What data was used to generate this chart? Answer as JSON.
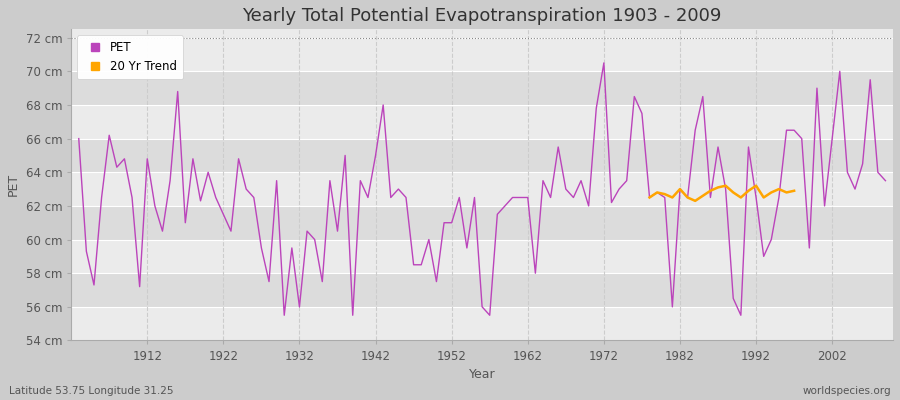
{
  "title": "Yearly Total Potential Evapotranspiration 1903 - 2009",
  "xlabel": "Year",
  "ylabel": "PET",
  "lat_lon_label": "Latitude 53.75 Longitude 31.25",
  "watermark": "worldspecies.org",
  "ylim": [
    54,
    72.5
  ],
  "yticks": [
    54,
    56,
    58,
    60,
    62,
    64,
    66,
    68,
    70,
    72
  ],
  "ytick_labels": [
    "54 cm",
    "56 cm",
    "58 cm",
    "60 cm",
    "62 cm",
    "64 cm",
    "66 cm",
    "68 cm",
    "70 cm",
    "72 cm"
  ],
  "xlim": [
    1902,
    2010
  ],
  "xticks": [
    1912,
    1922,
    1932,
    1942,
    1952,
    1962,
    1972,
    1982,
    1992,
    2002
  ],
  "pet_color": "#BB44BB",
  "trend_color": "#FFA500",
  "fig_bg_color": "#CCCCCC",
  "plot_bg_light": "#EBEBEB",
  "plot_bg_dark": "#DCDCDC",
  "grid_v_color": "#CCCCCC",
  "grid_h_color": "#FFFFFF",
  "top_dotted_color": "#888888",
  "years": [
    1903,
    1904,
    1905,
    1906,
    1907,
    1908,
    1909,
    1910,
    1911,
    1912,
    1913,
    1914,
    1915,
    1916,
    1917,
    1918,
    1919,
    1920,
    1921,
    1922,
    1923,
    1924,
    1925,
    1926,
    1927,
    1928,
    1929,
    1930,
    1931,
    1932,
    1933,
    1934,
    1935,
    1936,
    1937,
    1938,
    1939,
    1940,
    1941,
    1942,
    1943,
    1944,
    1945,
    1946,
    1947,
    1948,
    1949,
    1950,
    1951,
    1952,
    1953,
    1954,
    1955,
    1956,
    1957,
    1958,
    1959,
    1960,
    1961,
    1962,
    1963,
    1964,
    1965,
    1966,
    1967,
    1968,
    1969,
    1970,
    1971,
    1972,
    1973,
    1974,
    1975,
    1976,
    1977,
    1978,
    1979,
    1980,
    1981,
    1982,
    1983,
    1984,
    1985,
    1986,
    1987,
    1988,
    1989,
    1990,
    1991,
    1992,
    1993,
    1994,
    1995,
    1996,
    1997,
    1998,
    1999,
    2000,
    2001,
    2002,
    2003,
    2004,
    2005,
    2006,
    2007,
    2008,
    2009
  ],
  "pet": [
    66.0,
    59.3,
    57.3,
    62.5,
    66.2,
    64.3,
    64.8,
    62.5,
    57.2,
    64.8,
    62.0,
    60.5,
    63.5,
    68.8,
    61.0,
    64.8,
    62.3,
    64.0,
    62.5,
    61.5,
    60.5,
    64.8,
    63.0,
    62.5,
    59.5,
    57.5,
    63.5,
    55.5,
    59.5,
    56.0,
    60.5,
    60.0,
    57.5,
    63.5,
    60.5,
    65.0,
    55.5,
    63.5,
    62.5,
    65.0,
    68.0,
    62.5,
    63.0,
    62.5,
    58.5,
    58.5,
    60.0,
    57.5,
    61.0,
    61.0,
    62.5,
    59.5,
    62.5,
    56.0,
    55.5,
    61.5,
    62.0,
    62.5,
    62.5,
    62.5,
    58.0,
    63.5,
    62.5,
    65.5,
    63.0,
    62.5,
    63.5,
    62.0,
    67.8,
    70.5,
    62.2,
    63.0,
    63.5,
    68.5,
    67.5,
    62.5,
    62.8,
    62.5,
    56.0,
    63.0,
    62.5,
    66.5,
    68.5,
    62.5,
    65.5,
    63.0,
    56.5,
    55.5,
    65.5,
    62.5,
    59.0,
    60.0,
    62.5,
    66.5,
    66.5,
    66.0,
    59.5,
    69.0,
    62.0,
    66.0,
    70.0,
    64.0,
    63.0,
    64.5,
    69.5,
    64.0,
    63.5
  ],
  "trend_years": [
    1978,
    1979,
    1980,
    1981,
    1982,
    1983,
    1984,
    1985,
    1986,
    1987,
    1988,
    1989,
    1990,
    1991,
    1992,
    1993,
    1994,
    1995,
    1996,
    1997
  ],
  "trend_values": [
    62.5,
    62.8,
    62.7,
    62.5,
    63.0,
    62.5,
    62.3,
    62.6,
    62.9,
    63.1,
    63.2,
    62.8,
    62.5,
    62.9,
    63.2,
    62.5,
    62.8,
    63.0,
    62.8,
    62.9
  ],
  "title_fontsize": 13,
  "axis_label_fontsize": 9,
  "tick_fontsize": 8.5,
  "legend_fontsize": 8.5
}
